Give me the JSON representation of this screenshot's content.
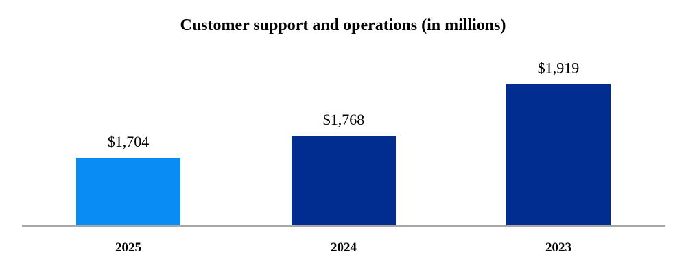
{
  "chart_data": {
    "type": "bar",
    "title": "Customer support and operations (in millions)",
    "categories": [
      "2025",
      "2024",
      "2023"
    ],
    "values": [
      1704,
      1768,
      1919
    ],
    "value_labels": [
      "$1,704",
      "$1,768",
      "$1,919"
    ],
    "bar_colors": [
      "#0a8cf5",
      "#002d8f",
      "#002d8f"
    ],
    "axis_color": "#a6a6a6",
    "xlabel": "",
    "ylabel": "",
    "grid": false,
    "legend": "none"
  }
}
